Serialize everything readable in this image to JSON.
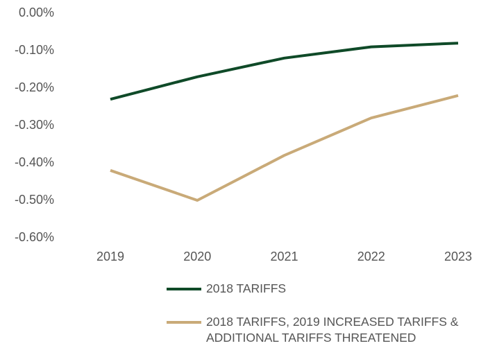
{
  "chart_data": {
    "type": "line",
    "categories": [
      "2019",
      "2020",
      "2021",
      "2022",
      "2023"
    ],
    "series": [
      {
        "name": "2018 TARIFFS",
        "color": "#0f4a28",
        "values": [
          -0.23,
          -0.17,
          -0.12,
          -0.09,
          -0.08
        ]
      },
      {
        "name": "2018 TARIFFS, 2019 INCREASED TARIFFS & ADDITIONAL TARIFFS THREATENED",
        "color": "#c9aa78",
        "values": [
          -0.42,
          -0.5,
          -0.38,
          -0.28,
          -0.22
        ]
      }
    ],
    "ylim": [
      -0.6,
      0
    ],
    "yticks": [
      {
        "value": 0,
        "label": "0.00%"
      },
      {
        "value": -0.1,
        "label": "-0.10%"
      },
      {
        "value": -0.2,
        "label": "-0.20%"
      },
      {
        "value": -0.3,
        "label": "-0.30%"
      },
      {
        "value": -0.4,
        "label": "-0.40%"
      },
      {
        "value": -0.5,
        "label": "-0.50%"
      },
      {
        "value": -0.6,
        "label": "-0.60%"
      }
    ],
    "grid": false
  }
}
